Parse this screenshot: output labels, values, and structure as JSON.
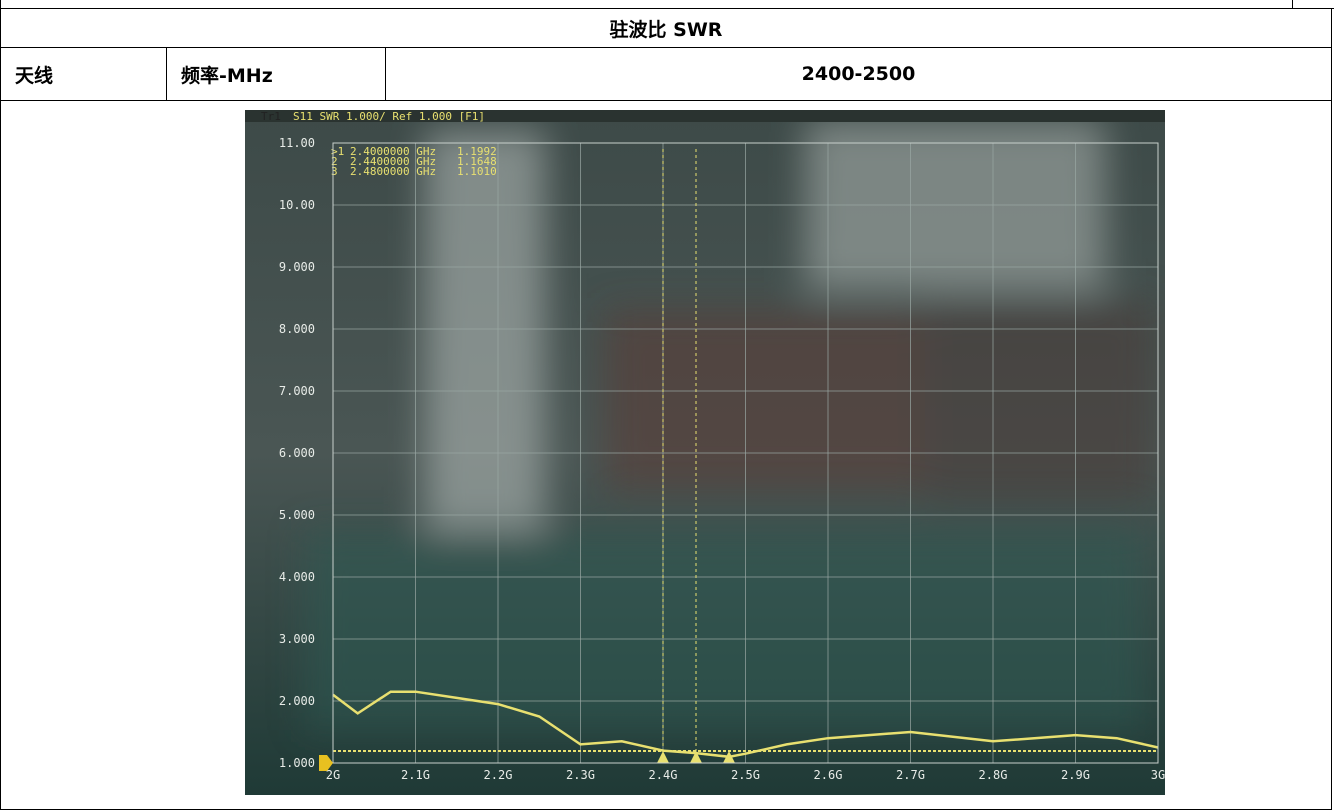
{
  "header": {
    "title": "驻波比 SWR"
  },
  "table": {
    "rows": [
      [
        "天线",
        "频率-MHz",
        "2400-2500"
      ]
    ]
  },
  "screen": {
    "trace_name": "Tr1",
    "trace_info": "S11 SWR 1.000/ Ref 1.000 [F1]",
    "markers": [
      {
        "label": ">1",
        "x": 2.4,
        "freq": "2.4000000 GHz",
        "swr": "1.1992"
      },
      {
        "label": "2",
        "x": 2.44,
        "freq": "2.4400000 GHz",
        "swr": "1.1648"
      },
      {
        "label": "3",
        "x": 2.48,
        "freq": "2.4800000 GHz",
        "swr": "1.1010"
      }
    ],
    "xlim": [
      2,
      3
    ],
    "ylim": [
      1,
      11
    ],
    "xticks": [
      {
        "value": 2,
        "label": "2G"
      },
      {
        "value": 2.1,
        "label": "2.1G"
      },
      {
        "value": 2.2,
        "label": "2.2G"
      },
      {
        "value": 2.3,
        "label": "2.3G"
      },
      {
        "value": 2.4,
        "label": "2.4G"
      },
      {
        "value": 2.5,
        "label": "2.5G"
      },
      {
        "value": 2.6,
        "label": "2.6G"
      },
      {
        "value": 2.7,
        "label": "2.7G"
      },
      {
        "value": 2.8,
        "label": "2.8G"
      },
      {
        "value": 2.9,
        "label": "2.9G"
      },
      {
        "value": 3,
        "label": "3G"
      }
    ],
    "yticks": [
      {
        "value": 11,
        "label": "11.00"
      },
      {
        "value": 10,
        "label": "10.00"
      },
      {
        "value": 9,
        "label": "9.000"
      },
      {
        "value": 8,
        "label": "8.000"
      },
      {
        "value": 7,
        "label": "7.000"
      },
      {
        "value": 6,
        "label": "6.000"
      },
      {
        "value": 5,
        "label": "5.000"
      },
      {
        "value": 4,
        "label": "4.000"
      },
      {
        "value": 3,
        "label": "3.000"
      },
      {
        "value": 2,
        "label": "2.000"
      },
      {
        "value": 1,
        "label": "1.000"
      }
    ],
    "trace": {
      "x": [
        2.0,
        2.03,
        2.07,
        2.1,
        2.15,
        2.2,
        2.25,
        2.3,
        2.35,
        2.4,
        2.44,
        2.48,
        2.5,
        2.55,
        2.6,
        2.7,
        2.8,
        2.85,
        2.9,
        2.95,
        3.0
      ],
      "values": [
        2.1,
        1.8,
        2.15,
        2.15,
        2.05,
        1.95,
        1.75,
        1.3,
        1.35,
        1.2,
        1.16,
        1.1,
        1.15,
        1.3,
        1.4,
        1.5,
        1.35,
        1.4,
        1.45,
        1.4,
        1.25
      ]
    }
  }
}
